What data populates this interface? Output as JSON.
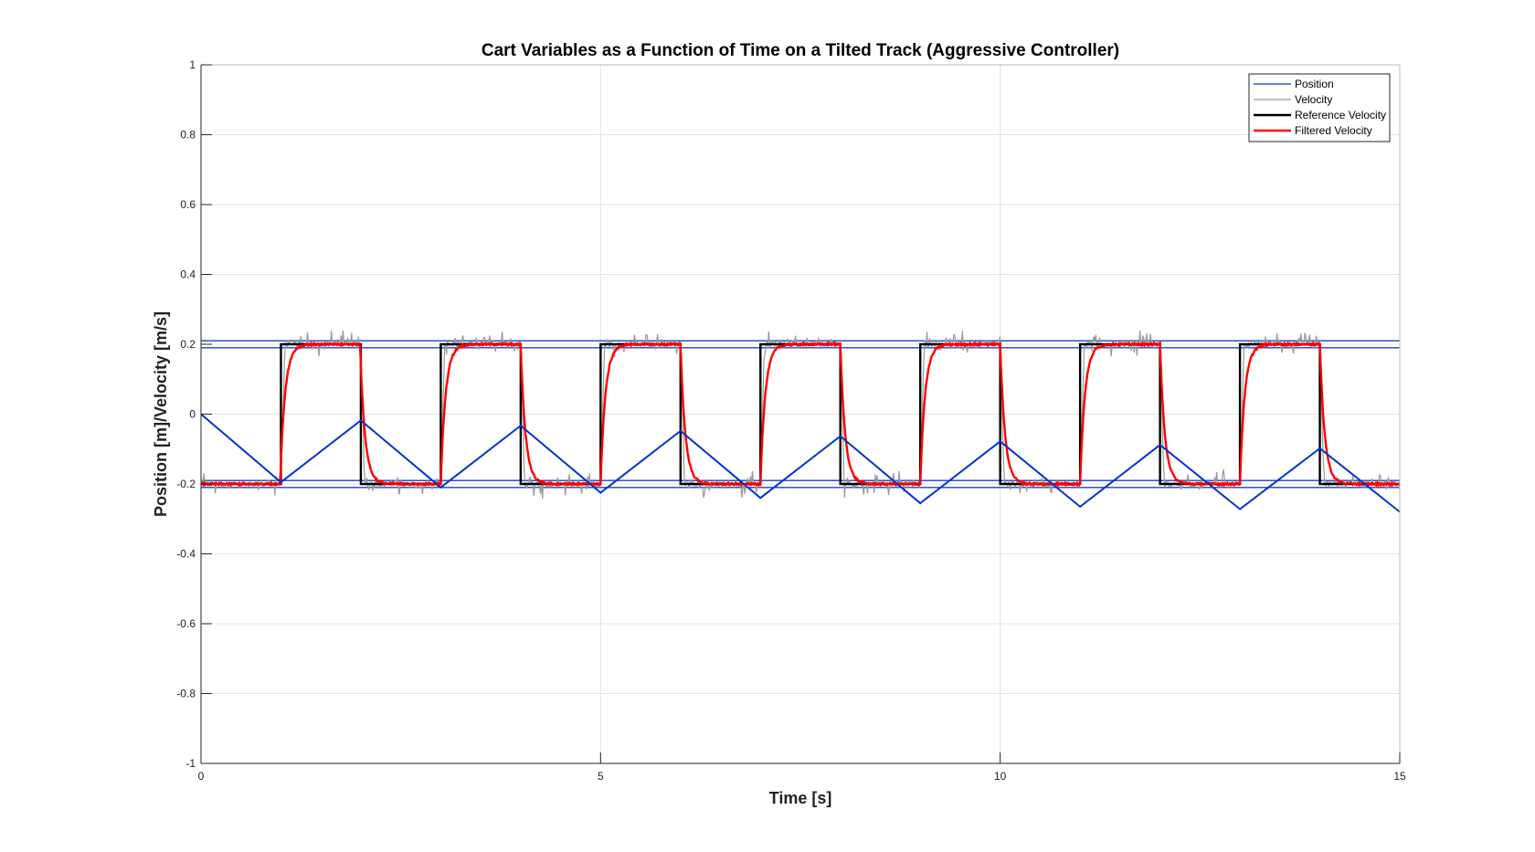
{
  "chart_data": {
    "type": "line",
    "title": "Cart Variables as a Function of Time on a Tilted Track (Aggressive Controller)",
    "xlabel": "Time [s]",
    "ylabel": "Position [m]/Velocity [m/s]",
    "xlim": [
      0,
      15
    ],
    "ylim": [
      -1,
      1
    ],
    "xticks": [
      0,
      5,
      10,
      15
    ],
    "yticks": [
      1,
      0.8,
      0.6,
      0.4,
      0.2,
      0,
      -0.2,
      -0.4,
      -0.6,
      -0.8,
      -1
    ],
    "xtick_labels": [
      "0",
      "5",
      "10",
      "15"
    ],
    "ytick_labels": [
      "1",
      "0.8",
      "0.6",
      "0.4",
      "0.2",
      "0",
      "-0.2",
      "-0.4",
      "-0.6",
      "-0.8",
      "-1"
    ],
    "grid": true,
    "legend_position": "top-right",
    "reference_lines": [
      0.21,
      0.19,
      -0.19,
      -0.21
    ],
    "series": [
      {
        "name": "Position",
        "color": "#0033cc",
        "x": [
          0,
          1,
          2,
          3,
          4,
          5,
          6,
          7,
          8,
          9,
          10,
          11,
          12,
          13,
          14,
          15
        ],
        "y": [
          0,
          -0.195,
          -0.018,
          -0.21,
          -0.033,
          -0.225,
          -0.048,
          -0.24,
          -0.063,
          -0.255,
          -0.078,
          -0.265,
          -0.088,
          -0.272,
          -0.098,
          -0.28
        ]
      },
      {
        "name": "Velocity",
        "color": "#999999",
        "x": [
          0,
          1,
          2,
          3,
          4,
          5,
          6,
          7,
          8,
          9,
          10,
          11,
          12,
          13,
          14,
          15
        ],
        "y": [
          -0.2,
          0.2,
          -0.2,
          0.2,
          -0.2,
          0.2,
          -0.2,
          0.2,
          -0.2,
          0.2,
          -0.2,
          0.2,
          -0.2,
          0.2,
          -0.2,
          -0.2
        ]
      },
      {
        "name": "Reference Velocity",
        "color": "#000000",
        "x": [
          0,
          1,
          2,
          3,
          4,
          5,
          6,
          7,
          8,
          9,
          10,
          11,
          12,
          13,
          14,
          15
        ],
        "y": [
          -0.2,
          0.2,
          -0.2,
          0.2,
          -0.2,
          0.2,
          -0.2,
          0.2,
          -0.2,
          0.2,
          -0.2,
          0.2,
          -0.2,
          0.2,
          -0.2,
          -0.2
        ]
      },
      {
        "name": "Filtered Velocity",
        "color": "#ff0000",
        "x": [
          0,
          1,
          2,
          3,
          4,
          5,
          6,
          7,
          8,
          9,
          10,
          11,
          12,
          13,
          14,
          15
        ],
        "y": [
          -0.2,
          0.2,
          -0.2,
          0.2,
          -0.2,
          0.2,
          -0.2,
          0.2,
          -0.2,
          0.2,
          -0.2,
          0.2,
          -0.2,
          0.2,
          -0.2,
          -0.17
        ]
      }
    ]
  }
}
